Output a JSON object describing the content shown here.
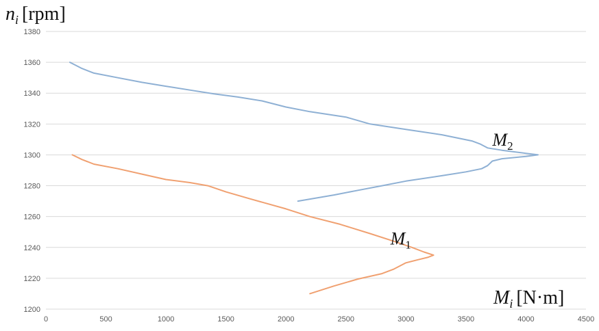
{
  "chart_data": {
    "type": "line",
    "ylabel": {
      "symbol": "n",
      "sub": "i",
      "unit": "[rpm]"
    },
    "xlabel": {
      "symbol": "M",
      "sub": "i",
      "unit": "[N·m]"
    },
    "xlim": [
      0,
      4500
    ],
    "ylim": [
      1200,
      1380
    ],
    "x_ticks": [
      0,
      500,
      1000,
      1500,
      2000,
      2500,
      3000,
      3500,
      4000,
      4500
    ],
    "y_ticks": [
      1200,
      1220,
      1240,
      1260,
      1280,
      1300,
      1320,
      1340,
      1360,
      1380
    ],
    "grid": "horizontal",
    "series": [
      {
        "color": "#8eb0d4",
        "points": [
          [
            200,
            1360
          ],
          [
            250,
            1358
          ],
          [
            300,
            1356
          ],
          [
            400,
            1353
          ],
          [
            600,
            1350
          ],
          [
            800,
            1347
          ],
          [
            1000,
            1344.5
          ],
          [
            1200,
            1342
          ],
          [
            1400,
            1339.5
          ],
          [
            1600,
            1337.5
          ],
          [
            1800,
            1335
          ],
          [
            2000,
            1331
          ],
          [
            2200,
            1328
          ],
          [
            2500,
            1324.5
          ],
          [
            2700,
            1320
          ],
          [
            3000,
            1316.5
          ],
          [
            3300,
            1313
          ],
          [
            3550,
            1309
          ],
          [
            3620,
            1307
          ],
          [
            3680,
            1304.5
          ],
          [
            3800,
            1303
          ],
          [
            4000,
            1301
          ],
          [
            4100,
            1300
          ],
          [
            4000,
            1299
          ],
          [
            3800,
            1297.5
          ],
          [
            3720,
            1296
          ],
          [
            3680,
            1293
          ],
          [
            3630,
            1291
          ],
          [
            3500,
            1289
          ],
          [
            3300,
            1286.5
          ],
          [
            3000,
            1283
          ],
          [
            2800,
            1280
          ],
          [
            2600,
            1277
          ],
          [
            2400,
            1274
          ],
          [
            2100,
            1270
          ]
        ],
        "label": {
          "symbol": "M",
          "sub": "2",
          "x": 3720,
          "y": 1306
        }
      },
      {
        "color": "#f0a070",
        "points": [
          [
            220,
            1300
          ],
          [
            300,
            1297
          ],
          [
            400,
            1294
          ],
          [
            600,
            1291
          ],
          [
            800,
            1287.5
          ],
          [
            1000,
            1284
          ],
          [
            1200,
            1282
          ],
          [
            1350,
            1280
          ],
          [
            1500,
            1276
          ],
          [
            1700,
            1271.5
          ],
          [
            2000,
            1265
          ],
          [
            2200,
            1260
          ],
          [
            2450,
            1255
          ],
          [
            2700,
            1249
          ],
          [
            2900,
            1244
          ],
          [
            3050,
            1240
          ],
          [
            3150,
            1237
          ],
          [
            3230,
            1235
          ],
          [
            3180,
            1233.5
          ],
          [
            3100,
            1232
          ],
          [
            3000,
            1230
          ],
          [
            2900,
            1226
          ],
          [
            2800,
            1223
          ],
          [
            2600,
            1219.5
          ],
          [
            2400,
            1215
          ],
          [
            2200,
            1210
          ]
        ],
        "label": {
          "symbol": "M",
          "sub": "1",
          "x": 2870,
          "y": 1242
        }
      }
    ]
  }
}
